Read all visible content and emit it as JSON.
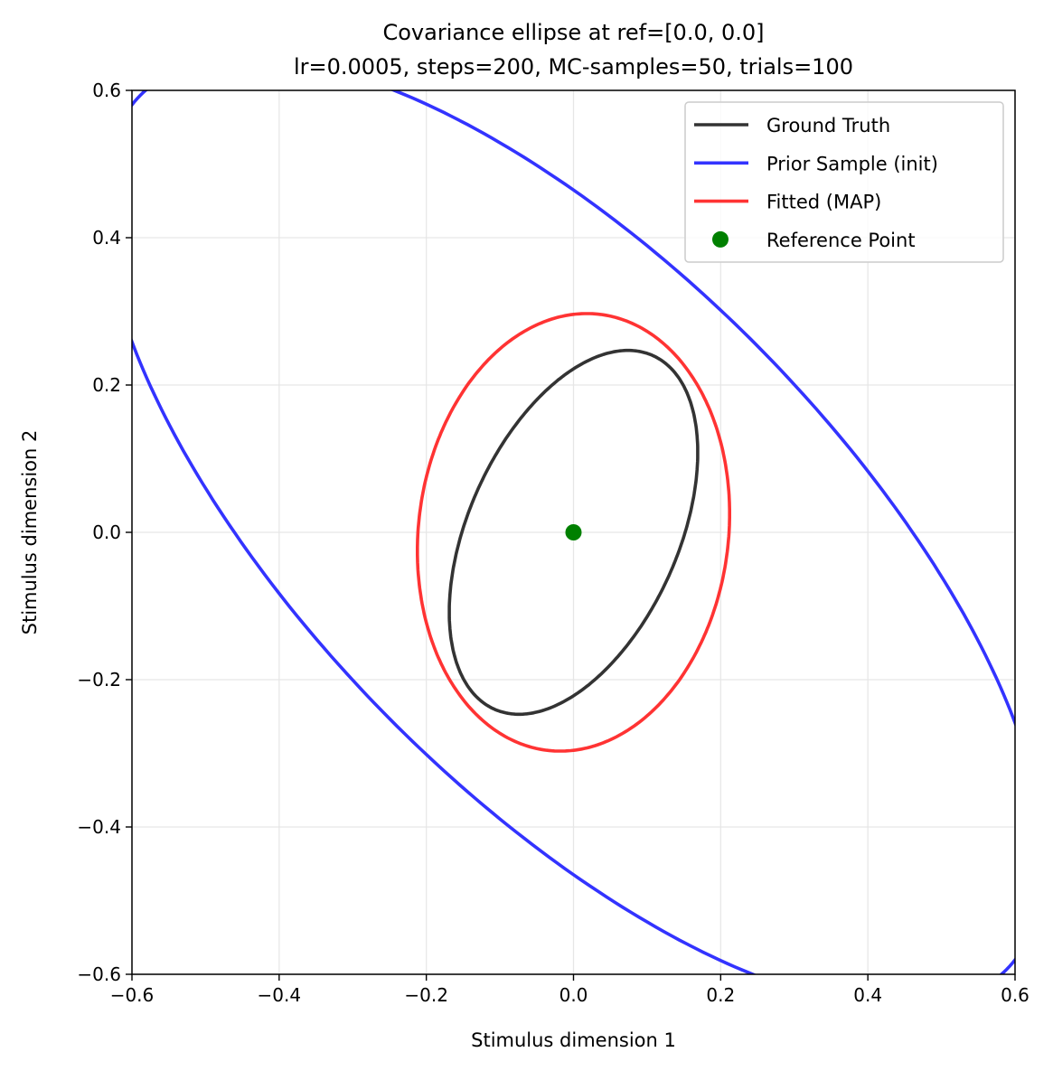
{
  "chart_data": {
    "type": "line",
    "title": "Covariance ellipse at ref=[0.0, 0.0]",
    "subtitle": "lr=0.0005, steps=200, MC-samples=50, trials=100",
    "xlabel": "Stimulus dimension 1",
    "ylabel": "Stimulus dimension 2",
    "xlim": [
      -0.6,
      0.6
    ],
    "ylim": [
      -0.6,
      0.6
    ],
    "xticks": [
      -0.6,
      -0.4,
      -0.2,
      0.0,
      0.2,
      0.4,
      0.6
    ],
    "yticks": [
      -0.6,
      -0.4,
      -0.2,
      0.0,
      0.2,
      0.4,
      0.6
    ],
    "xtick_labels": [
      "−0.6",
      "−0.4",
      "−0.2",
      "0.0",
      "0.2",
      "0.4",
      "0.6"
    ],
    "ytick_labels": [
      "−0.6",
      "−0.4",
      "−0.2",
      "0.0",
      "0.2",
      "0.4",
      "0.6"
    ],
    "grid": true,
    "legend_position": "top-right",
    "series": [
      {
        "name": "Ground Truth",
        "kind": "ellipse",
        "center": [
          0.0,
          0.0
        ],
        "covariance": [
          [
            0.0285,
            0.0183
          ],
          [
            0.0183,
            0.061
          ]
        ],
        "color": "#333333"
      },
      {
        "name": "Prior Sample (init)",
        "kind": "ellipse",
        "center": [
          0.0,
          0.0
        ],
        "covariance": [
          [
            0.409,
            -0.286
          ],
          [
            -0.286,
            0.416
          ]
        ],
        "color": "#3333ff"
      },
      {
        "name": "Fitted (MAP)",
        "kind": "ellipse",
        "center": [
          0.0,
          0.0
        ],
        "covariance": [
          [
            0.045,
            0.00535
          ],
          [
            0.00535,
            0.0882
          ]
        ],
        "color": "#ff3333"
      },
      {
        "name": "Reference Point",
        "kind": "scatter",
        "points": [
          [
            0.0,
            0.0
          ]
        ],
        "color": "#008000"
      }
    ]
  }
}
